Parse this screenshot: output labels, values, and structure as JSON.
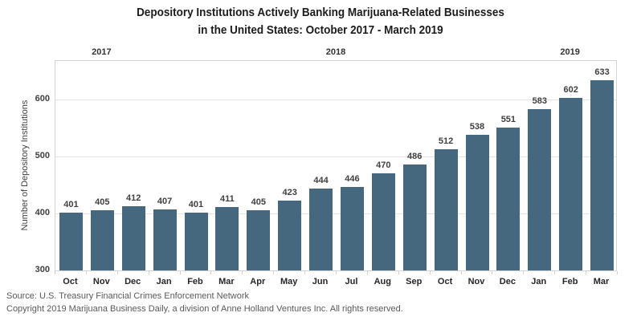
{
  "title": {
    "line1": "Depository Institutions Actively Banking Marijuana-Related Businesses",
    "line2": "in the United States: October 2017 - March 2019"
  },
  "chart_data": {
    "type": "bar",
    "categories": [
      "Oct",
      "Nov",
      "Dec",
      "Jan",
      "Feb",
      "Mar",
      "Apr",
      "May",
      "Jun",
      "Jul",
      "Aug",
      "Sep",
      "Oct",
      "Nov",
      "Dec",
      "Jan",
      "Feb",
      "Mar"
    ],
    "values": [
      401,
      405,
      412,
      407,
      401,
      411,
      405,
      423,
      444,
      446,
      470,
      486,
      512,
      538,
      551,
      583,
      602,
      633
    ],
    "year_groups": [
      {
        "label": "2017",
        "start": 0,
        "count": 3
      },
      {
        "label": "2018",
        "start": 3,
        "count": 12
      },
      {
        "label": "2019",
        "start": 15,
        "count": 3
      }
    ],
    "title": "Depository Institutions Actively Banking Marijuana-Related Businesses in the United States: October 2017 - March 2019",
    "xlabel": "",
    "ylabel": "Number of Depository Institutions",
    "yticks": [
      300,
      400,
      500,
      600
    ],
    "ylim": [
      300,
      670
    ],
    "grid": true,
    "legend": false,
    "bar_color": "#45687e"
  },
  "footer": {
    "source": "Source: U.S. Treasury Financial Crimes Enforcement Network",
    "copyright": "Copyright 2019 Marijuana Business Daily, a division of Anne Holland Ventures Inc. All rights reserved."
  }
}
